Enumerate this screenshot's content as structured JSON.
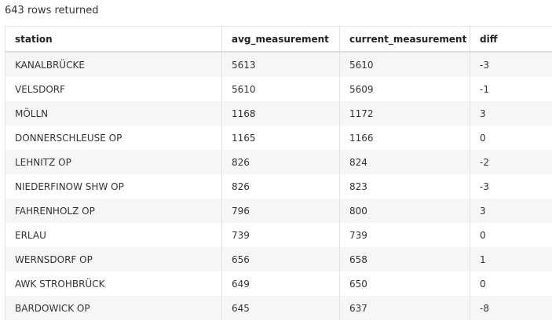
{
  "result_count": "643 rows returned",
  "table": {
    "columns": [
      "station",
      "avg_measurement",
      "current_measurement",
      "diff"
    ],
    "rows": [
      [
        "KANALBRÜCKE",
        "5613",
        "5610",
        "-3"
      ],
      [
        "VELSDORF",
        "5610",
        "5609",
        "-1"
      ],
      [
        "MÖLLN",
        "1168",
        "1172",
        "3"
      ],
      [
        "DONNERSCHLEUSE OP",
        "1165",
        "1166",
        "0"
      ],
      [
        "LEHNITZ OP",
        "826",
        "824",
        "-2"
      ],
      [
        "NIEDERFINOW SHW OP",
        "826",
        "823",
        "-3"
      ],
      [
        "FAHRENHOLZ OP",
        "796",
        "800",
        "3"
      ],
      [
        "ERLAU",
        "739",
        "739",
        "0"
      ],
      [
        "WERNSDORF OP",
        "656",
        "658",
        "1"
      ],
      [
        "AWK STROHBRÜCK",
        "649",
        "650",
        "0"
      ],
      [
        "BARDOWICK OP",
        "645",
        "637",
        "-8"
      ]
    ]
  }
}
